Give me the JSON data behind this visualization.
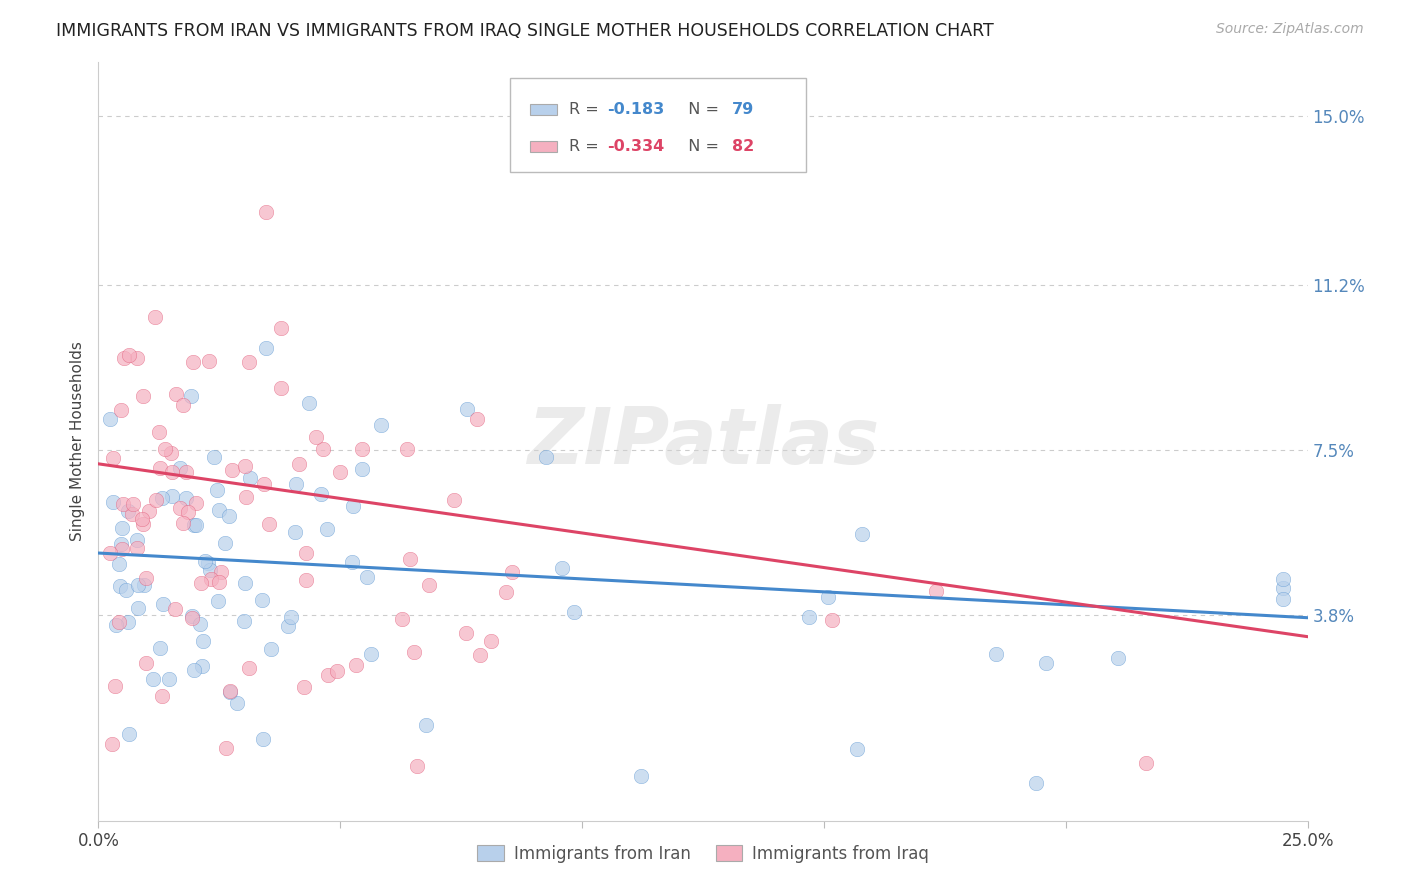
{
  "title": "IMMIGRANTS FROM IRAN VS IMMIGRANTS FROM IRAQ SINGLE MOTHER HOUSEHOLDS CORRELATION CHART",
  "source": "Source: ZipAtlas.com",
  "ylabel": "Single Mother Households",
  "x_min": 0.0,
  "x_max": 0.25,
  "y_min": -0.008,
  "y_max": 0.162,
  "x_tick_positions": [
    0.0,
    0.05,
    0.1,
    0.15,
    0.2,
    0.25
  ],
  "y_tick_values_right": [
    0.15,
    0.112,
    0.075,
    0.038
  ],
  "y_tick_labels_right": [
    "15.0%",
    "11.2%",
    "7.5%",
    "3.8%"
  ],
  "iran_color": "#b8d0eb",
  "iraq_color": "#f5b0c0",
  "iran_R": -0.183,
  "iran_N": 79,
  "iraq_R": -0.334,
  "iraq_N": 82,
  "legend_iran_label": "Immigrants from Iran",
  "legend_iraq_label": "Immigrants from Iraq",
  "watermark": "ZIPatlas",
  "iran_line_color": "#4488cc",
  "iraq_line_color": "#dd4466",
  "background_color": "#ffffff",
  "grid_color": "#cccccc",
  "title_color": "#222222",
  "axis_label_color": "#444444",
  "right_tick_color": "#5588bb",
  "marker_size": 110,
  "marker_alpha": 0.7,
  "iran_line_intercept": 0.052,
  "iran_line_slope": -0.058,
  "iraq_line_intercept": 0.072,
  "iraq_line_slope": -0.155
}
